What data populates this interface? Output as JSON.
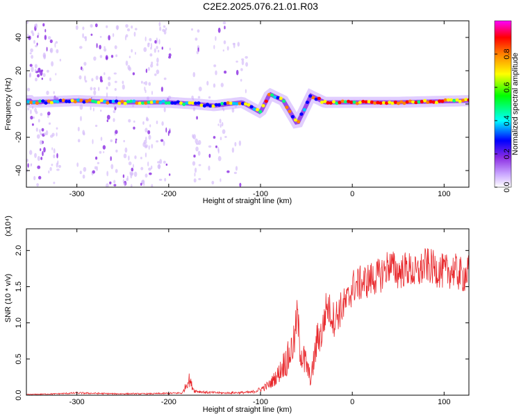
{
  "title": "C2E2.2025.076.21.01.R03",
  "chart_data": [
    {
      "type": "heatmap",
      "xlabel": "Height of straight line (km)",
      "ylabel": "Frequency (Hz)",
      "xlim": [
        -355,
        127
      ],
      "ylim": [
        -50,
        50
      ],
      "xticks": [
        -300,
        -200,
        -100,
        0,
        100
      ],
      "yticks": [
        -40,
        -20,
        0,
        20,
        40
      ],
      "colorbar": {
        "label": "Normalized spectral amplitude",
        "ticks": [
          0.0,
          0.2,
          0.4,
          0.6,
          0.8
        ],
        "range": [
          0,
          1
        ],
        "colors": [
          "#ffffff",
          "#c9a5ff",
          "#8a2be2",
          "#0000ff",
          "#00ffff",
          "#00ff00",
          "#ffff00",
          "#ff8000",
          "#ff0000",
          "#ff00ff"
        ]
      },
      "ridge": {
        "description": "dominant frequency ridge",
        "points": [
          [
            -350,
            1
          ],
          [
            -300,
            2
          ],
          [
            -250,
            1
          ],
          [
            -200,
            1
          ],
          [
            -170,
            0
          ],
          [
            -150,
            -1
          ],
          [
            -120,
            1
          ],
          [
            -100,
            -5
          ],
          [
            -90,
            6
          ],
          [
            -75,
            2
          ],
          [
            -60,
            -12
          ],
          [
            -45,
            5
          ],
          [
            -30,
            1
          ],
          [
            0,
            1
          ],
          [
            50,
            1
          ],
          [
            127,
            2
          ]
        ]
      }
    },
    {
      "type": "line",
      "xlabel": "Height of straight line (km)",
      "ylabel": "SNR (10 * v/v)",
      "y_multiplier": "(x10⁴)",
      "xlim": [
        -355,
        127
      ],
      "ylim": [
        0,
        2.3
      ],
      "xticks": [
        -300,
        -200,
        -100,
        0,
        100
      ],
      "yticks": [
        "0.0",
        "0.5",
        "1.0",
        "1.5",
        "2.0"
      ],
      "series": [
        {
          "color": "#e8262a",
          "x": [
            -355,
            -320,
            -300,
            -260,
            -220,
            -185,
            -178,
            -172,
            -160,
            -140,
            -110,
            -100,
            -90,
            -80,
            -70,
            -63,
            -60,
            -57,
            -52,
            -45,
            -38,
            -33,
            -28,
            -20,
            -12,
            -5,
            0,
            10,
            20,
            30,
            40,
            50,
            60,
            70,
            80,
            90,
            100,
            110,
            120,
            127
          ],
          "values": [
            0.01,
            0.02,
            0.03,
            0.02,
            0.02,
            0.03,
            0.22,
            0.06,
            0.04,
            0.03,
            0.04,
            0.08,
            0.15,
            0.3,
            0.55,
            0.8,
            1.2,
            0.7,
            0.5,
            0.2,
            0.85,
            0.9,
            1.3,
            1.1,
            1.25,
            1.35,
            1.55,
            1.6,
            1.65,
            1.7,
            1.85,
            1.75,
            1.8,
            1.72,
            1.85,
            1.8,
            1.75,
            1.78,
            1.7,
            1.75
          ]
        }
      ]
    }
  ]
}
